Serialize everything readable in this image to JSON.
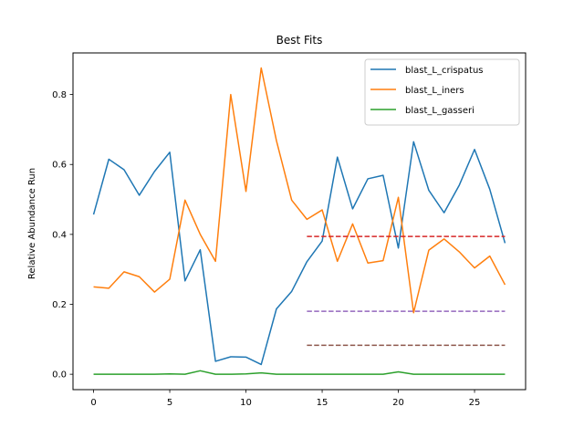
{
  "chart_data": {
    "type": "line",
    "title": "Best Fits",
    "xlabel": "",
    "ylabel": "Relative Abundance Run",
    "xlim": [
      -1.35,
      28.35
    ],
    "ylim": [
      -0.044,
      0.919
    ],
    "x_ticks": [
      0,
      5,
      10,
      15,
      20,
      25
    ],
    "y_ticks": [
      0.0,
      0.2,
      0.4,
      0.6,
      0.8
    ],
    "y_tick_labels": [
      "0.0",
      "0.2",
      "0.4",
      "0.6",
      "0.8"
    ],
    "grid": false,
    "legend_position": "top-right",
    "x": [
      0,
      1,
      2,
      3,
      4,
      5,
      6,
      7,
      8,
      9,
      10,
      11,
      12,
      13,
      14,
      15,
      16,
      17,
      18,
      19,
      20,
      21,
      22,
      23,
      24,
      25,
      26,
      27
    ],
    "series": [
      {
        "name": "blast_L_crispatus",
        "color": "#1f77b4",
        "values": [
          0.457,
          0.615,
          0.585,
          0.512,
          0.58,
          0.635,
          0.267,
          0.356,
          0.037,
          0.05,
          0.049,
          0.028,
          0.187,
          0.237,
          0.322,
          0.381,
          0.621,
          0.473,
          0.559,
          0.569,
          0.361,
          0.665,
          0.526,
          0.462,
          0.541,
          0.643,
          0.529,
          0.375
        ]
      },
      {
        "name": "blast_L_iners",
        "color": "#ff7f0e",
        "values": [
          0.25,
          0.246,
          0.293,
          0.279,
          0.235,
          0.272,
          0.498,
          0.4,
          0.323,
          0.8,
          0.523,
          0.876,
          0.668,
          0.498,
          0.443,
          0.47,
          0.323,
          0.43,
          0.318,
          0.325,
          0.506,
          0.176,
          0.355,
          0.387,
          0.35,
          0.304,
          0.338,
          0.256
        ]
      },
      {
        "name": "blast_L_gasseri",
        "color": "#2ca02c",
        "values": [
          0.0,
          0.0,
          0.0,
          0.0,
          0.0,
          0.001,
          0.0,
          0.01,
          0.0,
          0.0,
          0.001,
          0.004,
          0.0,
          0.0,
          0.0,
          0.0,
          0.0,
          0.0,
          0.0,
          0.0,
          0.007,
          0.0,
          0.0,
          0.0,
          0.0,
          0.0,
          0.0,
          0.0
        ]
      }
    ],
    "reference_lines": [
      {
        "y": 0.394,
        "x_start": 14,
        "x_end": 27,
        "color": "#d62728",
        "style": "dashed"
      },
      {
        "y": 0.18,
        "x_start": 14,
        "x_end": 27,
        "color": "#9467bd",
        "style": "dashed"
      },
      {
        "y": 0.083,
        "x_start": 14,
        "x_end": 27,
        "color": "#8c564b",
        "style": "dashed"
      }
    ]
  }
}
